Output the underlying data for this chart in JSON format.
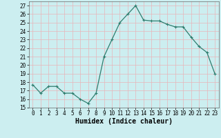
{
  "x": [
    0,
    1,
    2,
    3,
    4,
    5,
    6,
    7,
    8,
    9,
    10,
    11,
    12,
    13,
    14,
    15,
    16,
    17,
    18,
    19,
    20,
    21,
    22,
    23
  ],
  "y": [
    17.7,
    16.7,
    17.5,
    17.5,
    16.7,
    16.7,
    16.0,
    15.5,
    16.7,
    21.0,
    23.0,
    25.0,
    26.0,
    27.0,
    25.3,
    25.2,
    25.2,
    24.8,
    24.5,
    24.5,
    23.3,
    22.2,
    21.5,
    19.0
  ],
  "line_color": "#2e7d6e",
  "marker": "+",
  "marker_size": 3,
  "marker_edge_width": 0.8,
  "line_width": 0.9,
  "bg_color": "#cceef0",
  "grid_color": "#e8b4b8",
  "xlabel": "Humidex (Indice chaleur)",
  "xlim": [
    -0.5,
    23.5
  ],
  "ylim": [
    15,
    27.5
  ],
  "yticks": [
    15,
    16,
    17,
    18,
    19,
    20,
    21,
    22,
    23,
    24,
    25,
    26,
    27
  ],
  "xticks": [
    0,
    1,
    2,
    3,
    4,
    5,
    6,
    7,
    8,
    9,
    10,
    11,
    12,
    13,
    14,
    15,
    16,
    17,
    18,
    19,
    20,
    21,
    22,
    23
  ],
  "tick_label_size": 5.5,
  "xlabel_size": 7,
  "font_family": "monospace"
}
